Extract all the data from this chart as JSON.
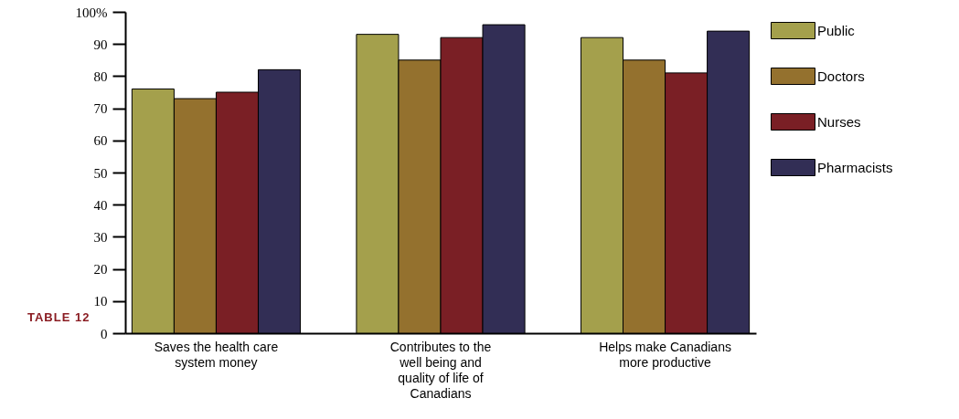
{
  "chart_data": {
    "type": "bar",
    "categories": [
      "Saves the health care system money",
      "Contributes to the well being and quality of life of Canadians",
      "Helps make Canadians more productive"
    ],
    "series": [
      {
        "name": "Public",
        "color": "#a4a04c",
        "values": [
          76,
          93,
          92
        ]
      },
      {
        "name": "Doctors",
        "color": "#94712e",
        "values": [
          73,
          85,
          85
        ]
      },
      {
        "name": "Nurses",
        "color": "#7a1f25",
        "values": [
          75,
          92,
          81
        ]
      },
      {
        "name": "Pharmacists",
        "color": "#322e55",
        "values": [
          82,
          96,
          94
        ]
      }
    ],
    "ylim": [
      0,
      100
    ],
    "yticks": [
      0,
      10,
      20,
      30,
      40,
      50,
      60,
      70,
      80,
      90,
      {
        "value": 100,
        "label": "100%"
      }
    ],
    "grid": false,
    "legend": "top right",
    "annotations": [
      "TABLE 12"
    ]
  }
}
